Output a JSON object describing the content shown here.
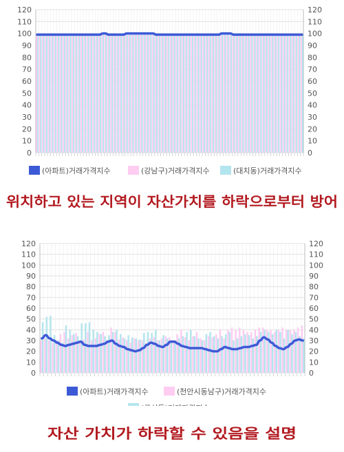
{
  "chart_data": [
    {
      "type": "bar",
      "ylim": [
        0,
        120
      ],
      "yticks": [
        0,
        10,
        20,
        30,
        40,
        50,
        60,
        70,
        80,
        90,
        100,
        110,
        120
      ],
      "grid": true,
      "legend_position": "bottom",
      "series": [
        {
          "name": "(아파트)거래가격지수",
          "render": "line",
          "color": "#3d5ad6",
          "values": [
            99,
            99,
            99,
            99,
            99,
            99,
            99,
            99,
            99,
            99,
            99,
            99,
            99,
            99,
            99,
            99,
            99,
            99,
            99,
            99,
            99,
            99,
            100,
            100,
            99,
            99,
            99,
            99,
            99,
            99,
            100,
            100,
            100,
            100,
            100,
            100,
            100,
            100,
            100,
            100,
            99,
            99,
            99,
            99,
            99,
            99,
            99,
            99,
            99,
            99,
            99,
            99,
            99,
            99,
            99,
            99,
            99,
            99,
            99,
            99,
            99,
            99,
            100,
            100,
            100,
            100,
            99,
            99,
            99,
            99,
            99,
            99,
            99,
            99,
            99,
            99,
            99,
            99,
            99,
            99,
            99,
            99,
            99,
            99,
            99,
            99,
            99,
            99,
            99,
            99
          ]
        },
        {
          "name": "(강남구)거래가격지수",
          "render": "bar",
          "color": "#ffccf2",
          "values": [
            100,
            100,
            100,
            100,
            100,
            100,
            100,
            100,
            100,
            100,
            100,
            100,
            100,
            100,
            100,
            100,
            100,
            100,
            100,
            100,
            100,
            100,
            100,
            100,
            100,
            100,
            100,
            100,
            100,
            100,
            100,
            100,
            100,
            100,
            100,
            100,
            100,
            100,
            100,
            100,
            100,
            100,
            100,
            100,
            100,
            100,
            100,
            100,
            100,
            100,
            100,
            100,
            100,
            100,
            100,
            100,
            100,
            100,
            100,
            100,
            100,
            100,
            100,
            100,
            100,
            100,
            100,
            100,
            100,
            100,
            100,
            100,
            100,
            100,
            100,
            100,
            100,
            100,
            100,
            100,
            100,
            100,
            100,
            100,
            100,
            100,
            100,
            100,
            100,
            100
          ]
        },
        {
          "name": "(대치동)거래가격지수",
          "render": "bar",
          "color": "#b3e5ef",
          "values": [
            100,
            100,
            100,
            100,
            100,
            100,
            100,
            100,
            100,
            100,
            100,
            100,
            100,
            100,
            100,
            100,
            100,
            100,
            100,
            100,
            100,
            100,
            100,
            100,
            100,
            100,
            100,
            100,
            100,
            100,
            100,
            100,
            100,
            100,
            100,
            100,
            100,
            100,
            100,
            100,
            100,
            100,
            100,
            100,
            100,
            100,
            100,
            100,
            100,
            100,
            100,
            100,
            100,
            100,
            100,
            100,
            100,
            100,
            100,
            100,
            100,
            100,
            100,
            100,
            100,
            100,
            100,
            100,
            100,
            100,
            100,
            100,
            100,
            100,
            100,
            100,
            100,
            100,
            100,
            100,
            100,
            100,
            100,
            100,
            100,
            100,
            100,
            100,
            100,
            100
          ]
        }
      ]
    },
    {
      "type": "bar",
      "ylim": [
        0,
        120
      ],
      "yticks": [
        0,
        10,
        20,
        30,
        40,
        50,
        60,
        70,
        80,
        90,
        100,
        110,
        120
      ],
      "grid": true,
      "legend_position": "bottom",
      "series": [
        {
          "name": "(아파트)거래가격지수",
          "render": "line",
          "color": "#3d5ad6",
          "values": [
            32,
            35,
            32,
            30,
            28,
            26,
            25,
            26,
            27,
            28,
            29,
            26,
            25,
            25,
            25,
            26,
            27,
            29,
            30,
            27,
            25,
            24,
            22,
            21,
            20,
            21,
            23,
            26,
            28,
            27,
            25,
            24,
            26,
            29,
            29,
            27,
            25,
            24,
            23,
            23,
            23,
            23,
            22,
            21,
            20,
            20,
            22,
            24,
            23,
            22,
            22,
            23,
            24,
            24,
            25,
            26,
            30,
            33,
            31,
            28,
            25,
            23,
            22,
            24,
            27,
            30,
            31,
            30
          ]
        },
        {
          "name": "(천안시동남구)거래가격지수",
          "render": "bar",
          "color": "#ffccf2",
          "values": [
            30,
            32,
            30,
            28,
            30,
            36,
            38,
            32,
            35,
            37,
            30,
            31,
            38,
            30,
            32,
            36,
            38,
            30,
            42,
            38,
            31,
            33,
            30,
            28,
            32,
            30,
            30,
            28,
            32,
            33,
            30,
            32,
            34,
            33,
            30,
            36,
            40,
            33,
            30,
            34,
            38,
            32,
            30,
            34,
            33,
            36,
            40,
            32,
            40,
            42,
            40,
            42,
            40,
            38,
            38,
            40,
            42,
            42,
            40,
            40,
            38,
            40,
            42,
            40,
            40,
            40,
            42,
            44
          ]
        },
        {
          "name": "(구성동)거래가격지수",
          "render": "bar",
          "color": "#b3e5ef",
          "values": [
            47,
            52,
            53,
            35,
            30,
            28,
            44,
            40,
            36,
            34,
            46,
            46,
            47,
            40,
            38,
            36,
            34,
            35,
            38,
            40,
            36,
            32,
            35,
            33,
            32,
            31,
            37,
            38,
            37,
            40,
            30,
            35,
            32,
            30,
            30,
            32,
            34,
            38,
            40,
            34,
            32,
            30,
            36,
            38,
            34,
            32,
            34,
            36,
            38,
            30,
            32,
            34,
            36,
            35,
            32,
            34,
            38,
            40,
            38,
            36,
            40,
            38,
            32,
            40,
            36,
            38,
            34,
            32
          ]
        }
      ]
    }
  ],
  "captions": {
    "top": "위치하고 있는 지역이 자산가치를 하락으로부터 방어",
    "bottom": "자산 가치가 하락할 수 있음을 설명"
  }
}
